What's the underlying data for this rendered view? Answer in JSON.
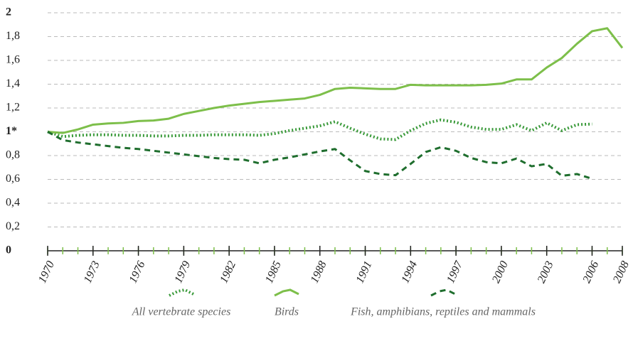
{
  "chart_data": {
    "type": "line",
    "x": [
      1970,
      1971,
      1972,
      1973,
      1974,
      1975,
      1976,
      1977,
      1978,
      1979,
      1980,
      1981,
      1982,
      1983,
      1984,
      1985,
      1986,
      1987,
      1988,
      1989,
      1990,
      1991,
      1992,
      1993,
      1994,
      1995,
      1996,
      1997,
      1998,
      1999,
      2000,
      2001,
      2002,
      2003,
      2004,
      2005,
      2006,
      2007,
      2008
    ],
    "xlim": [
      1970,
      2008
    ],
    "xticks": [
      1970,
      1973,
      1976,
      1979,
      1982,
      1985,
      1988,
      1991,
      1994,
      1997,
      2000,
      2003,
      2006,
      2008
    ],
    "ylim": [
      0,
      2
    ],
    "yticks": [
      0,
      {
        "value": 0.2,
        "label": "0,2"
      },
      {
        "value": 0.4,
        "label": "0,4"
      },
      {
        "value": 0.6,
        "label": "0,6"
      },
      {
        "value": 0.8,
        "label": "0,8"
      },
      {
        "value": 1,
        "label": "1*"
      },
      {
        "value": 1.2,
        "label": "1,2"
      },
      {
        "value": 1.4,
        "label": "1,4"
      },
      {
        "value": 1.6,
        "label": "1,6"
      },
      {
        "value": 1.8,
        "label": "1,8"
      },
      2
    ],
    "grid": true,
    "series": [
      {
        "name": "All vertebrate species",
        "color": "#3a9a3a",
        "style": "dotted",
        "values": [
          1.0,
          0.96,
          0.97,
          0.975,
          0.975,
          0.97,
          0.97,
          0.965,
          0.965,
          0.97,
          0.97,
          0.975,
          0.975,
          0.975,
          0.97,
          0.985,
          1.01,
          1.03,
          1.05,
          1.085,
          1.03,
          0.98,
          0.94,
          0.935,
          1.01,
          1.07,
          1.1,
          1.08,
          1.04,
          1.02,
          1.02,
          1.06,
          1.01,
          1.075,
          1.01,
          1.06,
          1.065,
          null,
          null
        ]
      },
      {
        "name": "Birds",
        "color": "#7dbf4a",
        "style": "solid",
        "values": [
          1.0,
          0.99,
          1.02,
          1.06,
          1.07,
          1.075,
          1.09,
          1.095,
          1.11,
          1.15,
          1.175,
          1.2,
          1.22,
          1.235,
          1.25,
          1.26,
          1.27,
          1.28,
          1.31,
          1.36,
          1.37,
          1.365,
          1.36,
          1.36,
          1.395,
          1.39,
          1.39,
          1.39,
          1.39,
          1.395,
          1.405,
          1.44,
          1.44,
          1.54,
          1.62,
          1.74,
          1.845,
          1.87,
          1.705
        ]
      },
      {
        "name": "Fish, amphibians, reptiles and mammals",
        "color": "#1f6e2e",
        "style": "dashed",
        "values": [
          1.0,
          0.93,
          0.91,
          0.895,
          0.88,
          0.865,
          0.855,
          0.84,
          0.825,
          0.81,
          0.795,
          0.78,
          0.77,
          0.765,
          0.735,
          0.765,
          0.785,
          0.81,
          0.835,
          0.855,
          0.76,
          0.67,
          0.645,
          0.635,
          0.73,
          0.83,
          0.87,
          0.84,
          0.78,
          0.745,
          0.735,
          0.775,
          0.71,
          0.73,
          0.63,
          0.645,
          0.605,
          null,
          null
        ]
      }
    ]
  }
}
